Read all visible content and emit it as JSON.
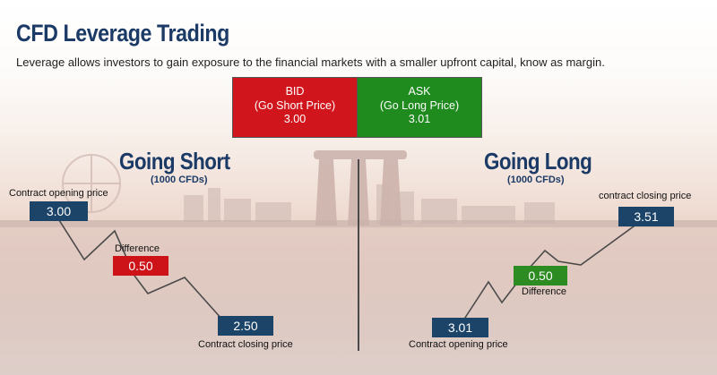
{
  "title": "CFD Leverage Trading",
  "subtitle": "Leverage allows investors to gain exposure to the financial markets with a smaller upfront capital, know as margin.",
  "bid": {
    "label": "BID",
    "sub": "(Go Short Price)",
    "price": "3.00",
    "color": "#d0161c"
  },
  "ask": {
    "label": "ASK",
    "sub": "(Go Long Price)",
    "price": "3.01",
    "color": "#1f8a1d"
  },
  "short": {
    "title": "Going Short",
    "subtitle": "(1000 CFDs)",
    "open_label": "Contract opening price",
    "open_price": "3.00",
    "diff_label": "Difference",
    "diff_value": "0.50",
    "close_label": "Contract closing price",
    "close_price": "2.50"
  },
  "long": {
    "title": "Going Long",
    "subtitle": "(1000 CFDs)",
    "open_label": "Contract opening price",
    "open_price": "3.01",
    "diff_label": "Difference",
    "diff_value": "0.50",
    "close_label": "contract closing price",
    "close_price": "3.51"
  },
  "colors": {
    "navy": "#1c4468",
    "title": "#1b3a66"
  }
}
